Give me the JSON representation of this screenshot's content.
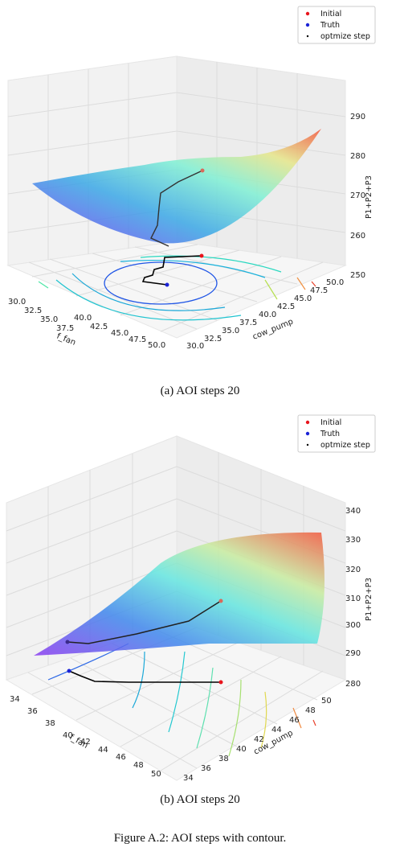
{
  "figure_caption": "Figure A.2: AOI steps with contour.",
  "legend": {
    "initial": "Initial",
    "truth": "Truth",
    "step": "optmize step"
  },
  "colors": {
    "initial": "#e8141c",
    "truth": "#1b23d6",
    "step": "#000000"
  },
  "chart_data": [
    {
      "type": "surface3d",
      "subcaption": "(a) AOI steps 20",
      "zlabel": "P1+P2+P3",
      "xlabel": "f_fan",
      "ylabel": "cow_pump",
      "zticks": [
        "250",
        "260",
        "270",
        "280",
        "290"
      ],
      "xticks": [
        "30.0",
        "32.5",
        "35.0",
        "37.5",
        "40.0",
        "42.5",
        "45.0",
        "47.5",
        "50.0"
      ],
      "yticks": [
        "30.0",
        "32.5",
        "35.0",
        "37.5",
        "40.0",
        "42.5",
        "45.0",
        "47.5",
        "50.0"
      ]
    },
    {
      "type": "surface3d",
      "subcaption": "(b) AOI steps 20",
      "zlabel": "P1+P2+P3",
      "xlabel": "f_fan",
      "ylabel": "cow_pump",
      "zticks": [
        "280",
        "290",
        "300",
        "310",
        "320",
        "330",
        "340"
      ],
      "xticks": [
        "34",
        "36",
        "38",
        "40",
        "42",
        "44",
        "46",
        "48",
        "50"
      ],
      "yticks": [
        "34",
        "36",
        "38",
        "40",
        "42",
        "44",
        "46",
        "48",
        "50"
      ]
    }
  ]
}
